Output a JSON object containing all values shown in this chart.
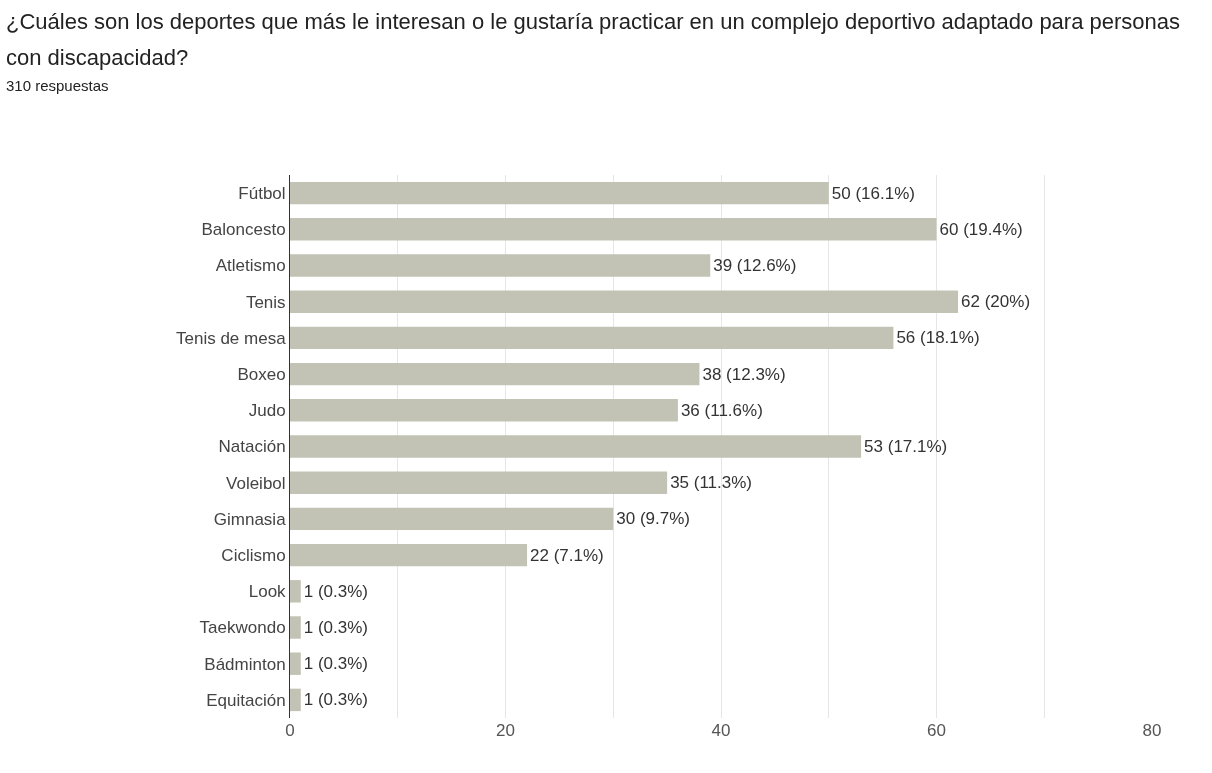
{
  "chart_data": {
    "type": "bar",
    "orientation": "horizontal",
    "title": "¿Cuáles son los deportes que más le interesan o le gustaría practicar en un complejo deportivo adaptado para personas con discapacidad?",
    "subtitle": "310 respuestas",
    "categories": [
      "Fútbol",
      "Baloncesto",
      "Atletismo",
      "Tenis",
      "Tenis de mesa",
      "Boxeo",
      "Judo",
      "Natación",
      "Voleibol",
      "Gimnasia",
      "Ciclismo",
      "Look",
      "Taekwondo",
      "Bádminton",
      "Equitación"
    ],
    "values": [
      50,
      60,
      39,
      62,
      56,
      38,
      36,
      53,
      35,
      30,
      22,
      1,
      1,
      1,
      1
    ],
    "value_labels": [
      "50 (16.1%)",
      "60 (19.4%)",
      "39 (12.6%)",
      "62 (20%)",
      "56 (18.1%)",
      "38 (12.3%)",
      "36 (11.6%)",
      "53 (17.1%)",
      "35 (11.3%)",
      "30 (9.7%)",
      "22 (7.1%)",
      "1 (0.3%)",
      "1 (0.3%)",
      "1 (0.3%)",
      "1 (0.3%)"
    ],
    "color": "#c2c3b4",
    "xlim": [
      0,
      80
    ],
    "xticks": [
      0,
      {
        "value": 10,
        "label": null
      },
      20,
      {
        "value": 30,
        "label": null
      },
      40,
      {
        "value": 50,
        "label": null
      },
      60,
      {
        "value": 70,
        "label": null
      },
      80
    ],
    "grid": "x",
    "legend": false
  }
}
